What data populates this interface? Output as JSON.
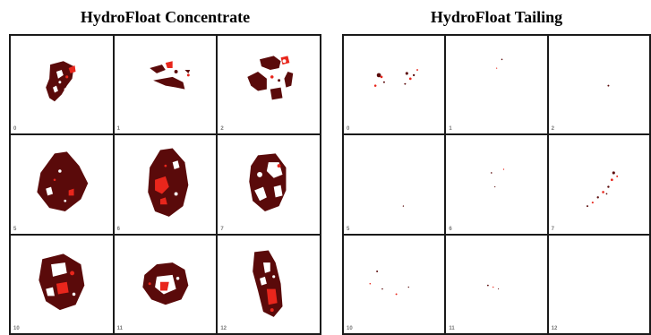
{
  "panels": [
    {
      "title": "HydroFloat Concentrate",
      "cells": [
        {
          "label": "0",
          "particle": "small-irregular"
        },
        {
          "label": "1",
          "particle": "fragments"
        },
        {
          "label": "2",
          "particle": "ring-fragments"
        },
        {
          "label": "5",
          "particle": "large-dense"
        },
        {
          "label": "6",
          "particle": "large-dense-red"
        },
        {
          "label": "7",
          "particle": "porous"
        },
        {
          "label": "10",
          "particle": "porous-red"
        },
        {
          "label": "11",
          "particle": "ring"
        },
        {
          "label": "12",
          "particle": "elongated-red"
        }
      ]
    },
    {
      "title": "HydroFloat Tailing",
      "cells": [
        {
          "label": "0",
          "particle": "sparse-specks"
        },
        {
          "label": "1",
          "particle": "near-empty"
        },
        {
          "label": "2",
          "particle": "single-speck"
        },
        {
          "label": "5",
          "particle": "near-empty"
        },
        {
          "label": "6",
          "particle": "few-specks"
        },
        {
          "label": "7",
          "particle": "diagonal-specks"
        },
        {
          "label": "10",
          "particle": "scattered-specks"
        },
        {
          "label": "11",
          "particle": "few-specks"
        },
        {
          "label": "12",
          "particle": "empty"
        }
      ]
    }
  ],
  "colors": {
    "particle_dark": "#5a0a0a",
    "particle_red": "#e8261c",
    "grid_line": "#1a1a1a"
  }
}
